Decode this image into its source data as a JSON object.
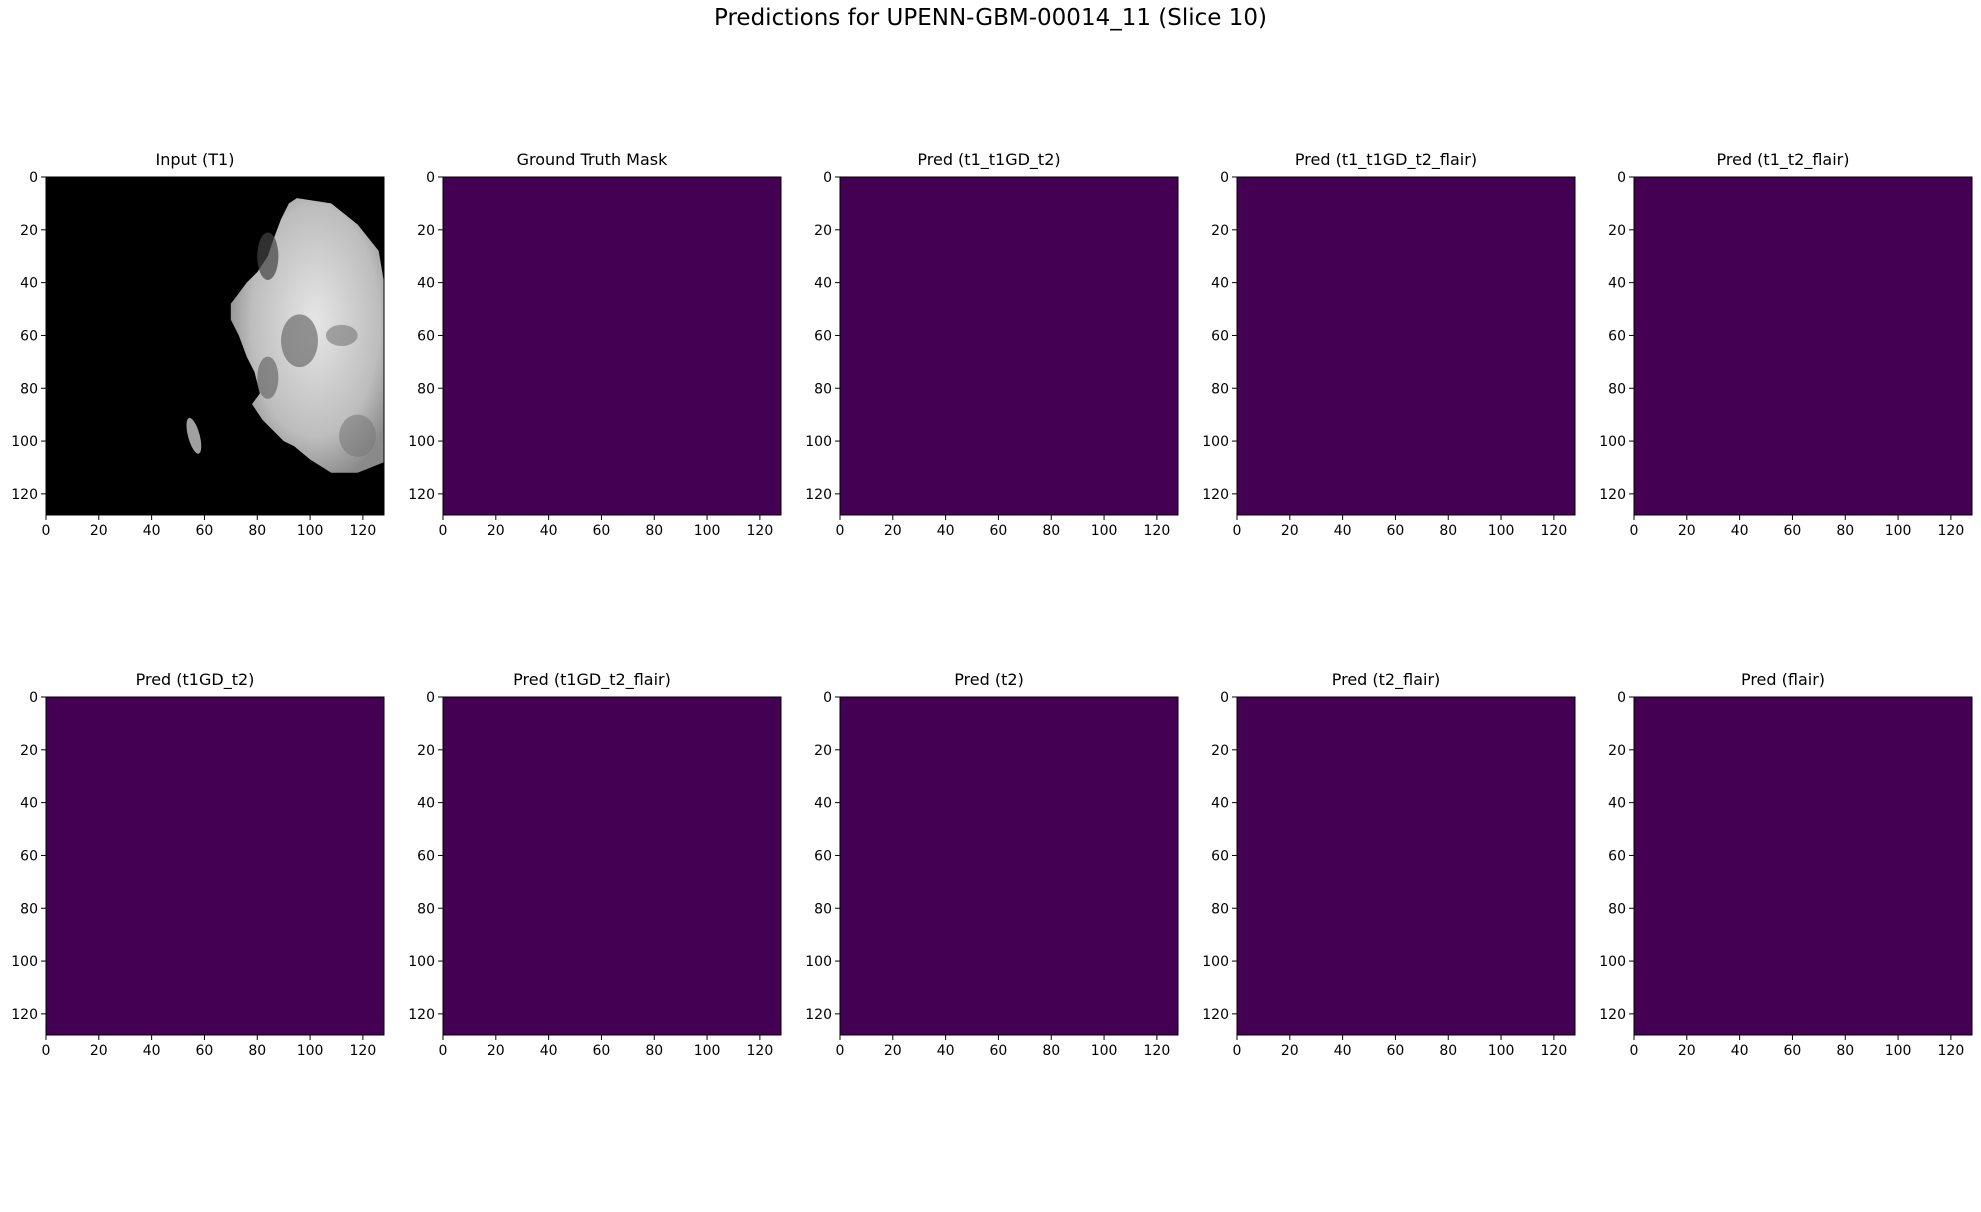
{
  "figure": {
    "title": "Predictions for UPENN-GBM-00014_11 (Slice 10)"
  },
  "colors": {
    "mask": "#440154",
    "background": "#ffffff",
    "axis": "#000000"
  },
  "chart_data": [
    {
      "type": "heatmap",
      "title": "Input (T1)",
      "colormap": "gray",
      "image": "grayscale-mri-slice",
      "xlim": [
        0,
        128
      ],
      "ylim": [
        128,
        0
      ],
      "xticks": [
        0,
        20,
        40,
        60,
        80,
        100,
        120
      ],
      "yticks": [
        0,
        20,
        40,
        60,
        80,
        100,
        120
      ]
    },
    {
      "type": "heatmap",
      "title": "Ground Truth Mask",
      "colormap": "viridis",
      "value": 0,
      "xlim": [
        0,
        128
      ],
      "ylim": [
        128,
        0
      ],
      "xticks": [
        0,
        20,
        40,
        60,
        80,
        100,
        120
      ],
      "yticks": [
        0,
        20,
        40,
        60,
        80,
        100,
        120
      ]
    },
    {
      "type": "heatmap",
      "title": "Pred (t1_t1GD_t2)",
      "colormap": "viridis",
      "value": 0,
      "xlim": [
        0,
        128
      ],
      "ylim": [
        128,
        0
      ],
      "xticks": [
        0,
        20,
        40,
        60,
        80,
        100,
        120
      ],
      "yticks": [
        0,
        20,
        40,
        60,
        80,
        100,
        120
      ]
    },
    {
      "type": "heatmap",
      "title": "Pred (t1_t1GD_t2_flair)",
      "colormap": "viridis",
      "value": 0,
      "xlim": [
        0,
        128
      ],
      "ylim": [
        128,
        0
      ],
      "xticks": [
        0,
        20,
        40,
        60,
        80,
        100,
        120
      ],
      "yticks": [
        0,
        20,
        40,
        60,
        80,
        100,
        120
      ]
    },
    {
      "type": "heatmap",
      "title": "Pred (t1_t2_flair)",
      "colormap": "viridis",
      "value": 0,
      "xlim": [
        0,
        128
      ],
      "ylim": [
        128,
        0
      ],
      "xticks": [
        0,
        20,
        40,
        60,
        80,
        100,
        120
      ],
      "yticks": [
        0,
        20,
        40,
        60,
        80,
        100,
        120
      ]
    },
    {
      "type": "heatmap",
      "title": "Pred (t1GD_t2)",
      "colormap": "viridis",
      "value": 0,
      "xlim": [
        0,
        128
      ],
      "ylim": [
        128,
        0
      ],
      "xticks": [
        0,
        20,
        40,
        60,
        80,
        100,
        120
      ],
      "yticks": [
        0,
        20,
        40,
        60,
        80,
        100,
        120
      ]
    },
    {
      "type": "heatmap",
      "title": "Pred (t1GD_t2_flair)",
      "colormap": "viridis",
      "value": 0,
      "xlim": [
        0,
        128
      ],
      "ylim": [
        128,
        0
      ],
      "xticks": [
        0,
        20,
        40,
        60,
        80,
        100,
        120
      ],
      "yticks": [
        0,
        20,
        40,
        60,
        80,
        100,
        120
      ]
    },
    {
      "type": "heatmap",
      "title": "Pred (t2)",
      "colormap": "viridis",
      "value": 0,
      "xlim": [
        0,
        128
      ],
      "ylim": [
        128,
        0
      ],
      "xticks": [
        0,
        20,
        40,
        60,
        80,
        100,
        120
      ],
      "yticks": [
        0,
        20,
        40,
        60,
        80,
        100,
        120
      ]
    },
    {
      "type": "heatmap",
      "title": "Pred (t2_flair)",
      "colormap": "viridis",
      "value": 0,
      "xlim": [
        0,
        128
      ],
      "ylim": [
        128,
        0
      ],
      "xticks": [
        0,
        20,
        40,
        60,
        80,
        100,
        120
      ],
      "yticks": [
        0,
        20,
        40,
        60,
        80,
        100,
        120
      ]
    },
    {
      "type": "heatmap",
      "title": "Pred (flair)",
      "colormap": "viridis",
      "value": 0,
      "xlim": [
        0,
        128
      ],
      "ylim": [
        128,
        0
      ],
      "xticks": [
        0,
        20,
        40,
        60,
        80,
        100,
        120
      ],
      "yticks": [
        0,
        20,
        40,
        60,
        80,
        100,
        120
      ]
    }
  ]
}
